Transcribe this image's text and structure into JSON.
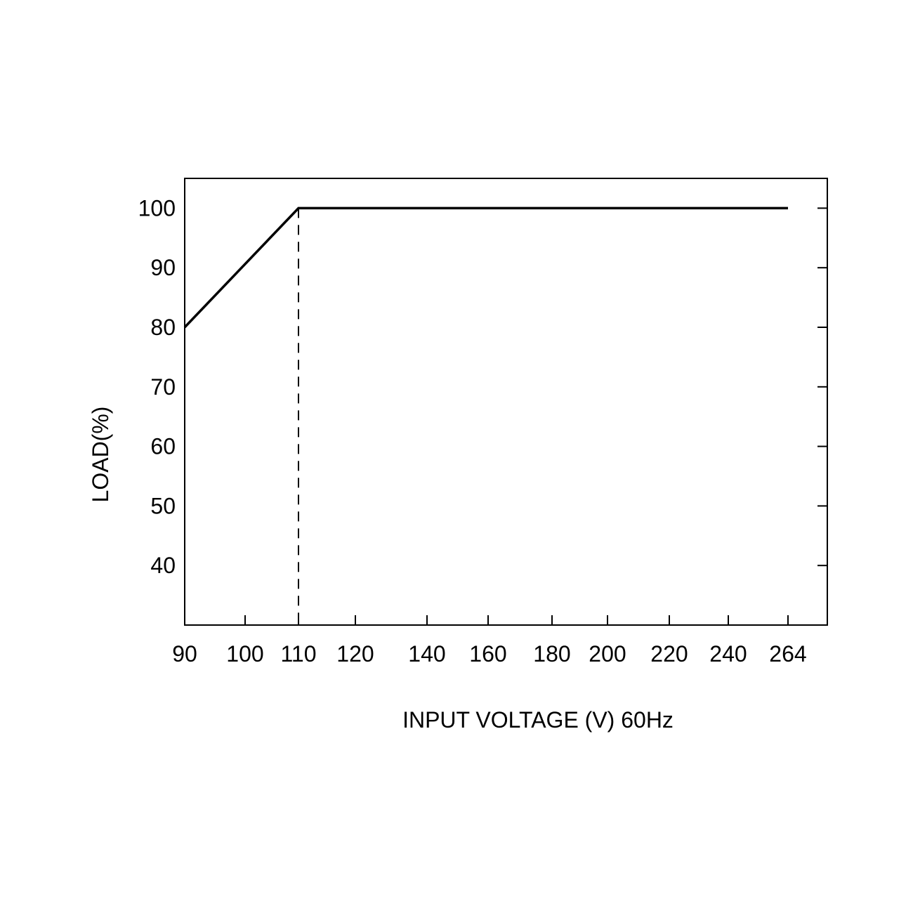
{
  "chart_data": {
    "type": "line",
    "title": "",
    "xlabel": "INPUT VOLTAGE (V) 60Hz",
    "ylabel": "LOAD(%)",
    "x_ticks": [
      "90",
      "100",
      "110",
      "120",
      "140",
      "160",
      "180",
      "200",
      "220",
      "240",
      "264"
    ],
    "y_ticks": [
      40,
      50,
      60,
      70,
      80,
      90,
      100
    ],
    "ylim": [
      30,
      105
    ],
    "x_scale": "categorical (non-uniform tick spacing)",
    "grid": false,
    "series": [
      {
        "x": [
          90,
          110,
          264
        ],
        "y": [
          80,
          100,
          100
        ],
        "style": "solid"
      }
    ],
    "annotations": [
      {
        "type": "vertical-dashed-line",
        "x": 110,
        "y_from": 30,
        "y_to": 100
      }
    ],
    "line_color": "#000000"
  }
}
